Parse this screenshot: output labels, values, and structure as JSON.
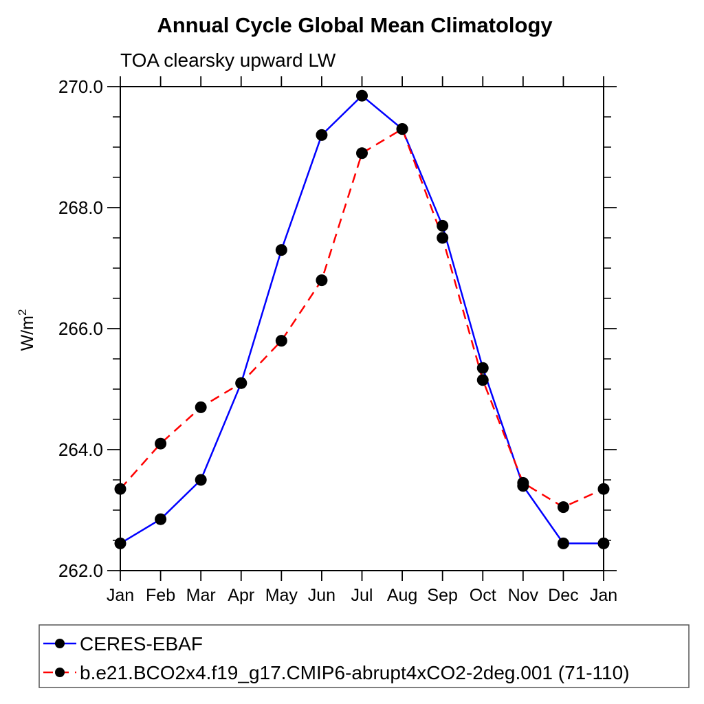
{
  "chart_data": {
    "type": "line",
    "title": "Annual Cycle Global Mean Climatology",
    "subtitle": "TOA clearsky upward LW",
    "ylabel": "W/m²",
    "xlabel": "",
    "categories": [
      "Jan",
      "Feb",
      "Mar",
      "Apr",
      "May",
      "Jun",
      "Jul",
      "Aug",
      "Sep",
      "Oct",
      "Nov",
      "Dec",
      "Jan"
    ],
    "ylim": [
      262.0,
      270.0
    ],
    "y_ticks": [
      {
        "value": 262.0,
        "label": "262.0"
      },
      {
        "value": 264.0,
        "label": "264.0"
      },
      {
        "value": 266.0,
        "label": "266.0"
      },
      {
        "value": 268.0,
        "label": "268.0"
      },
      {
        "value": 270.0,
        "label": "270.0"
      }
    ],
    "y_minor_step": 0.5,
    "grid": false,
    "legend_position": "bottom",
    "series": [
      {
        "name": "CERES-EBAF",
        "color": "#0000ff",
        "line_style": "solid",
        "marker": "filled-circle",
        "marker_color": "#000000",
        "values": [
          262.45,
          262.85,
          263.5,
          265.1,
          267.3,
          269.2,
          269.85,
          269.3,
          267.7,
          265.35,
          263.4,
          262.45,
          262.45
        ]
      },
      {
        "name": "b.e21.BCO2x4.f19_g17.CMIP6-abrupt4xCO2-2deg.001 (71-110)",
        "color": "#ff0000",
        "line_style": "dashed",
        "marker": "filled-circle",
        "marker_color": "#000000",
        "values": [
          263.35,
          264.1,
          264.7,
          265.1,
          265.8,
          266.8,
          268.9,
          269.3,
          267.5,
          265.15,
          263.45,
          263.05,
          263.35
        ]
      }
    ]
  },
  "colors": {
    "axis": "#000000",
    "background": "#ffffff"
  }
}
